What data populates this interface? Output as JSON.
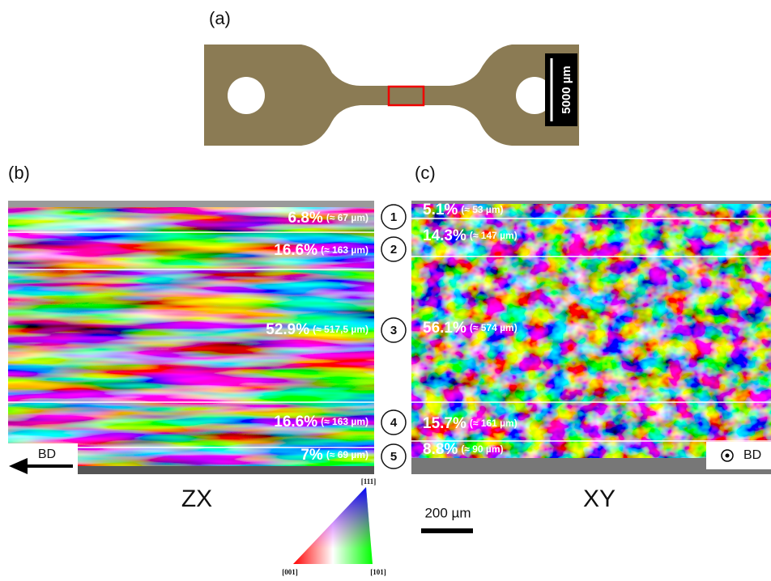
{
  "panel_a": {
    "label": "(a)",
    "scale_bar": "5000 µm"
  },
  "panel_b": {
    "label": "(b)",
    "plane": "ZX",
    "direction": "BD",
    "layers": [
      {
        "fraction": "6.8%",
        "thickness": "(≈ 67 µm)"
      },
      {
        "fraction": "16.6%",
        "thickness": "(≈ 163 µm)"
      },
      {
        "fraction": "52.9%",
        "thickness": "(≈ 517,5 µm)"
      },
      {
        "fraction": "16.6%",
        "thickness": "(≈ 163 µm)"
      },
      {
        "fraction": "7%",
        "thickness": "(≈ 69 µm)"
      }
    ]
  },
  "panel_c": {
    "label": "(c)",
    "plane": "XY",
    "direction": "BD",
    "layers": [
      {
        "fraction": "5.1%",
        "thickness": "(≈ 53 µm)"
      },
      {
        "fraction": "14.3%",
        "thickness": "(≈ 147 µm)"
      },
      {
        "fraction": "56.1%",
        "thickness": "(≈ 574 µm)"
      },
      {
        "fraction": "15.7%",
        "thickness": "(≈ 161 µm)"
      },
      {
        "fraction": "8.8%",
        "thickness": "(≈ 90 µm)"
      }
    ]
  },
  "layer_numbers": [
    "1",
    "2",
    "3",
    "4",
    "5"
  ],
  "scale_bar": "200 µm",
  "ipf_legend": {
    "top": "[111]",
    "left": "[001]",
    "right": "[101]"
  }
}
